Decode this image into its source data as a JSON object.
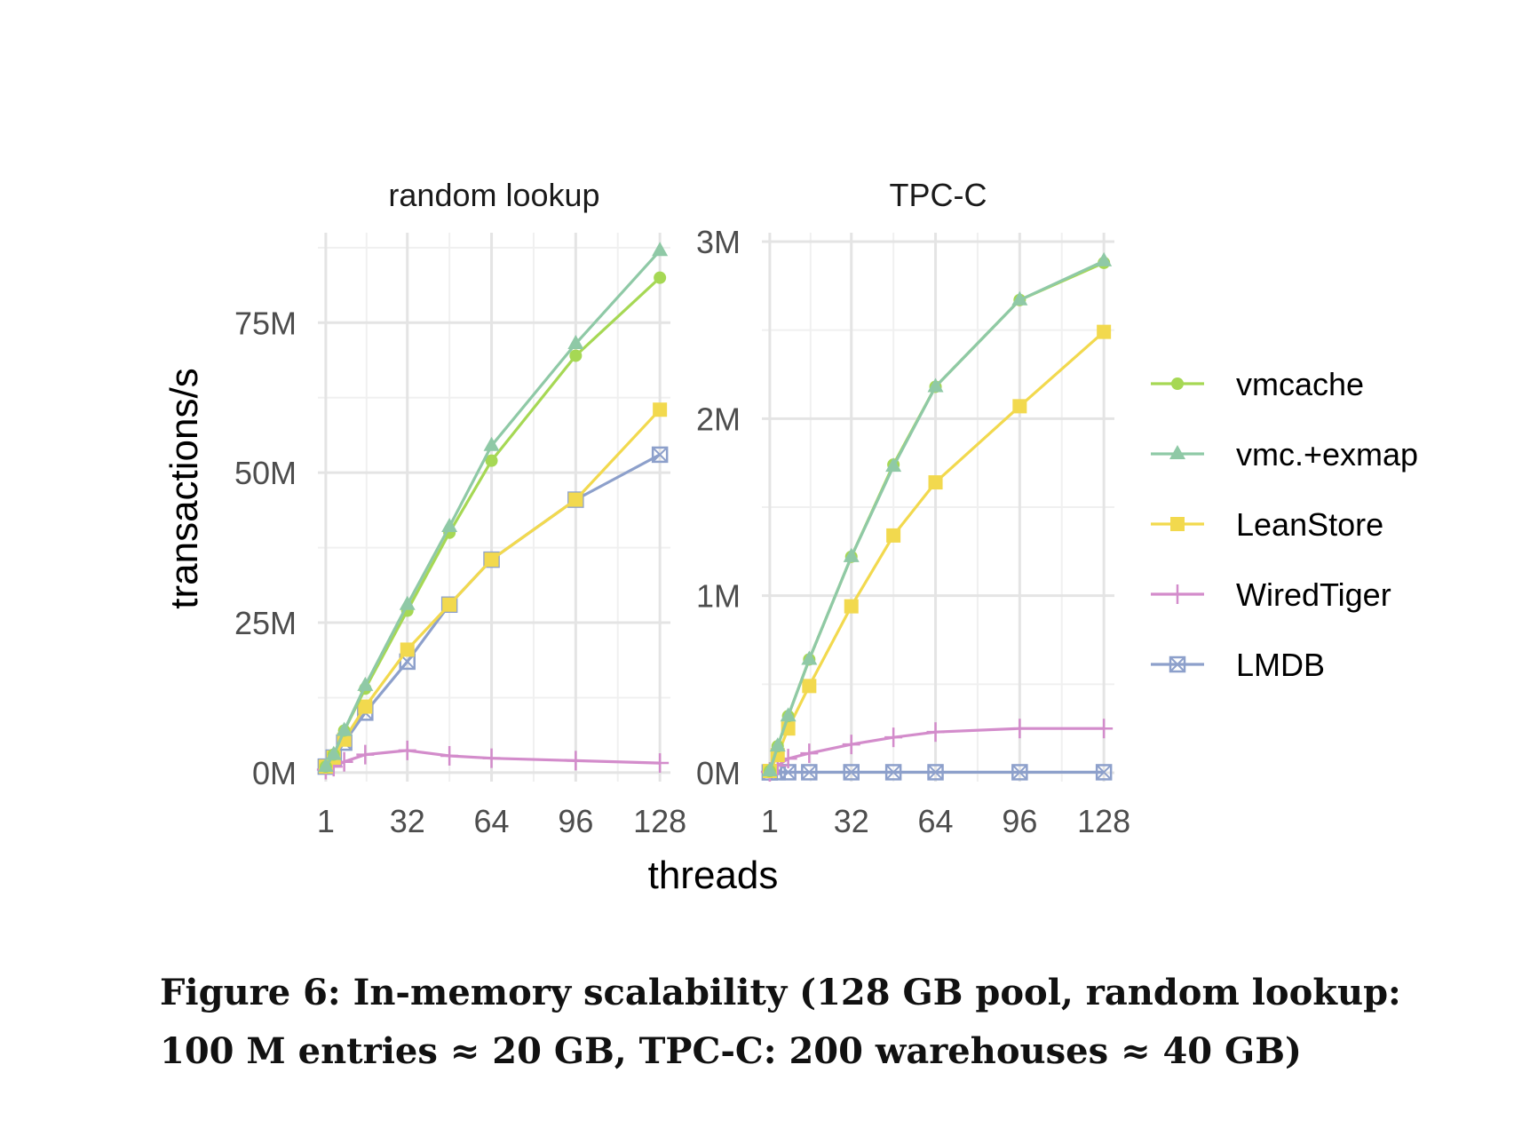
{
  "caption": {
    "line1": "Figure 6: In-memory scalability (128 GB pool, random lookup:",
    "line2": "100 M entries ≈ 20 GB, TPC-C: 200 warehouses ≈ 40 GB)"
  },
  "chart_data": {
    "type": "line",
    "xlabel": "threads",
    "ylabel": "transactions/s",
    "legend_position": "right",
    "grid": true,
    "series_styles": [
      {
        "name": "vmcache",
        "color": "#a6d854",
        "marker": "circle"
      },
      {
        "name": "vmc.+exmap",
        "color": "#8fc9a6",
        "marker": "triangle"
      },
      {
        "name": "LeanStore",
        "color": "#f2d94e",
        "marker": "square"
      },
      {
        "name": "WiredTiger",
        "color": "#d38ccb",
        "marker": "plus"
      },
      {
        "name": "LMDB",
        "color": "#8da0cb",
        "marker": "boxed-x"
      }
    ],
    "panels": [
      {
        "title": "random lookup",
        "x": [
          1,
          4,
          8,
          16,
          32,
          48,
          64,
          96,
          128
        ],
        "xticks": [
          1,
          32,
          64,
          96,
          128
        ],
        "xlim": [
          -2,
          132
        ],
        "ylim": [
          -1500000,
          90000000
        ],
        "yticks": [
          0,
          25000000,
          50000000,
          75000000
        ],
        "yticklabels": [
          "0M",
          "25M",
          "50M",
          "75M"
        ],
        "series": [
          {
            "name": "vmcache",
            "values": [
              1000000,
              3000000,
              7000000,
              14000000,
              27000000,
              40000000,
              52000000,
              69500000,
              82500000
            ]
          },
          {
            "name": "vmc.+exmap",
            "values": [
              1000000,
              3000000,
              7000000,
              14500000,
              28000000,
              41000000,
              54500000,
              71500000,
              87000000
            ]
          },
          {
            "name": "LeanStore",
            "values": [
              1000000,
              2500000,
              5500000,
              11000000,
              20500000,
              28000000,
              35500000,
              45500000,
              60500000
            ]
          },
          {
            "name": "WiredTiger",
            "values": [
              500000,
              1000000,
              1800000,
              3000000,
              3700000,
              2800000,
              2400000,
              2000000,
              1600000
            ]
          },
          {
            "name": "LMDB",
            "values": [
              1000000,
              2500000,
              5000000,
              10000000,
              18500000,
              28000000,
              35500000,
              45500000,
              53000000
            ]
          }
        ]
      },
      {
        "title": "TPC-C",
        "x": [
          1,
          4,
          8,
          16,
          32,
          48,
          64,
          96,
          128
        ],
        "xticks": [
          1,
          32,
          64,
          96,
          128
        ],
        "xlim": [
          -2,
          132
        ],
        "ylim": [
          -50000,
          3050000
        ],
        "yticks": [
          0,
          1000000,
          2000000,
          3000000
        ],
        "yticklabels": [
          "0M",
          "1M",
          "2M",
          "3M"
        ],
        "series": [
          {
            "name": "vmcache",
            "values": [
              10000,
              150000,
              320000,
              640000,
              1220000,
              1740000,
              2180000,
              2670000,
              2880000
            ]
          },
          {
            "name": "vmc.+exmap",
            "values": [
              10000,
              150000,
              320000,
              640000,
              1220000,
              1730000,
              2180000,
              2670000,
              2890000
            ]
          },
          {
            "name": "LeanStore",
            "values": [
              10000,
              100000,
              250000,
              490000,
              940000,
              1340000,
              1640000,
              2070000,
              2490000
            ]
          },
          {
            "name": "WiredTiger",
            "values": [
              5000,
              40000,
              80000,
              110000,
              160000,
              200000,
              230000,
              250000,
              250000
            ]
          },
          {
            "name": "LMDB",
            "values": [
              2000,
              3000,
              3000,
              3000,
              3000,
              3000,
              3000,
              3000,
              3000
            ]
          }
        ]
      }
    ]
  }
}
